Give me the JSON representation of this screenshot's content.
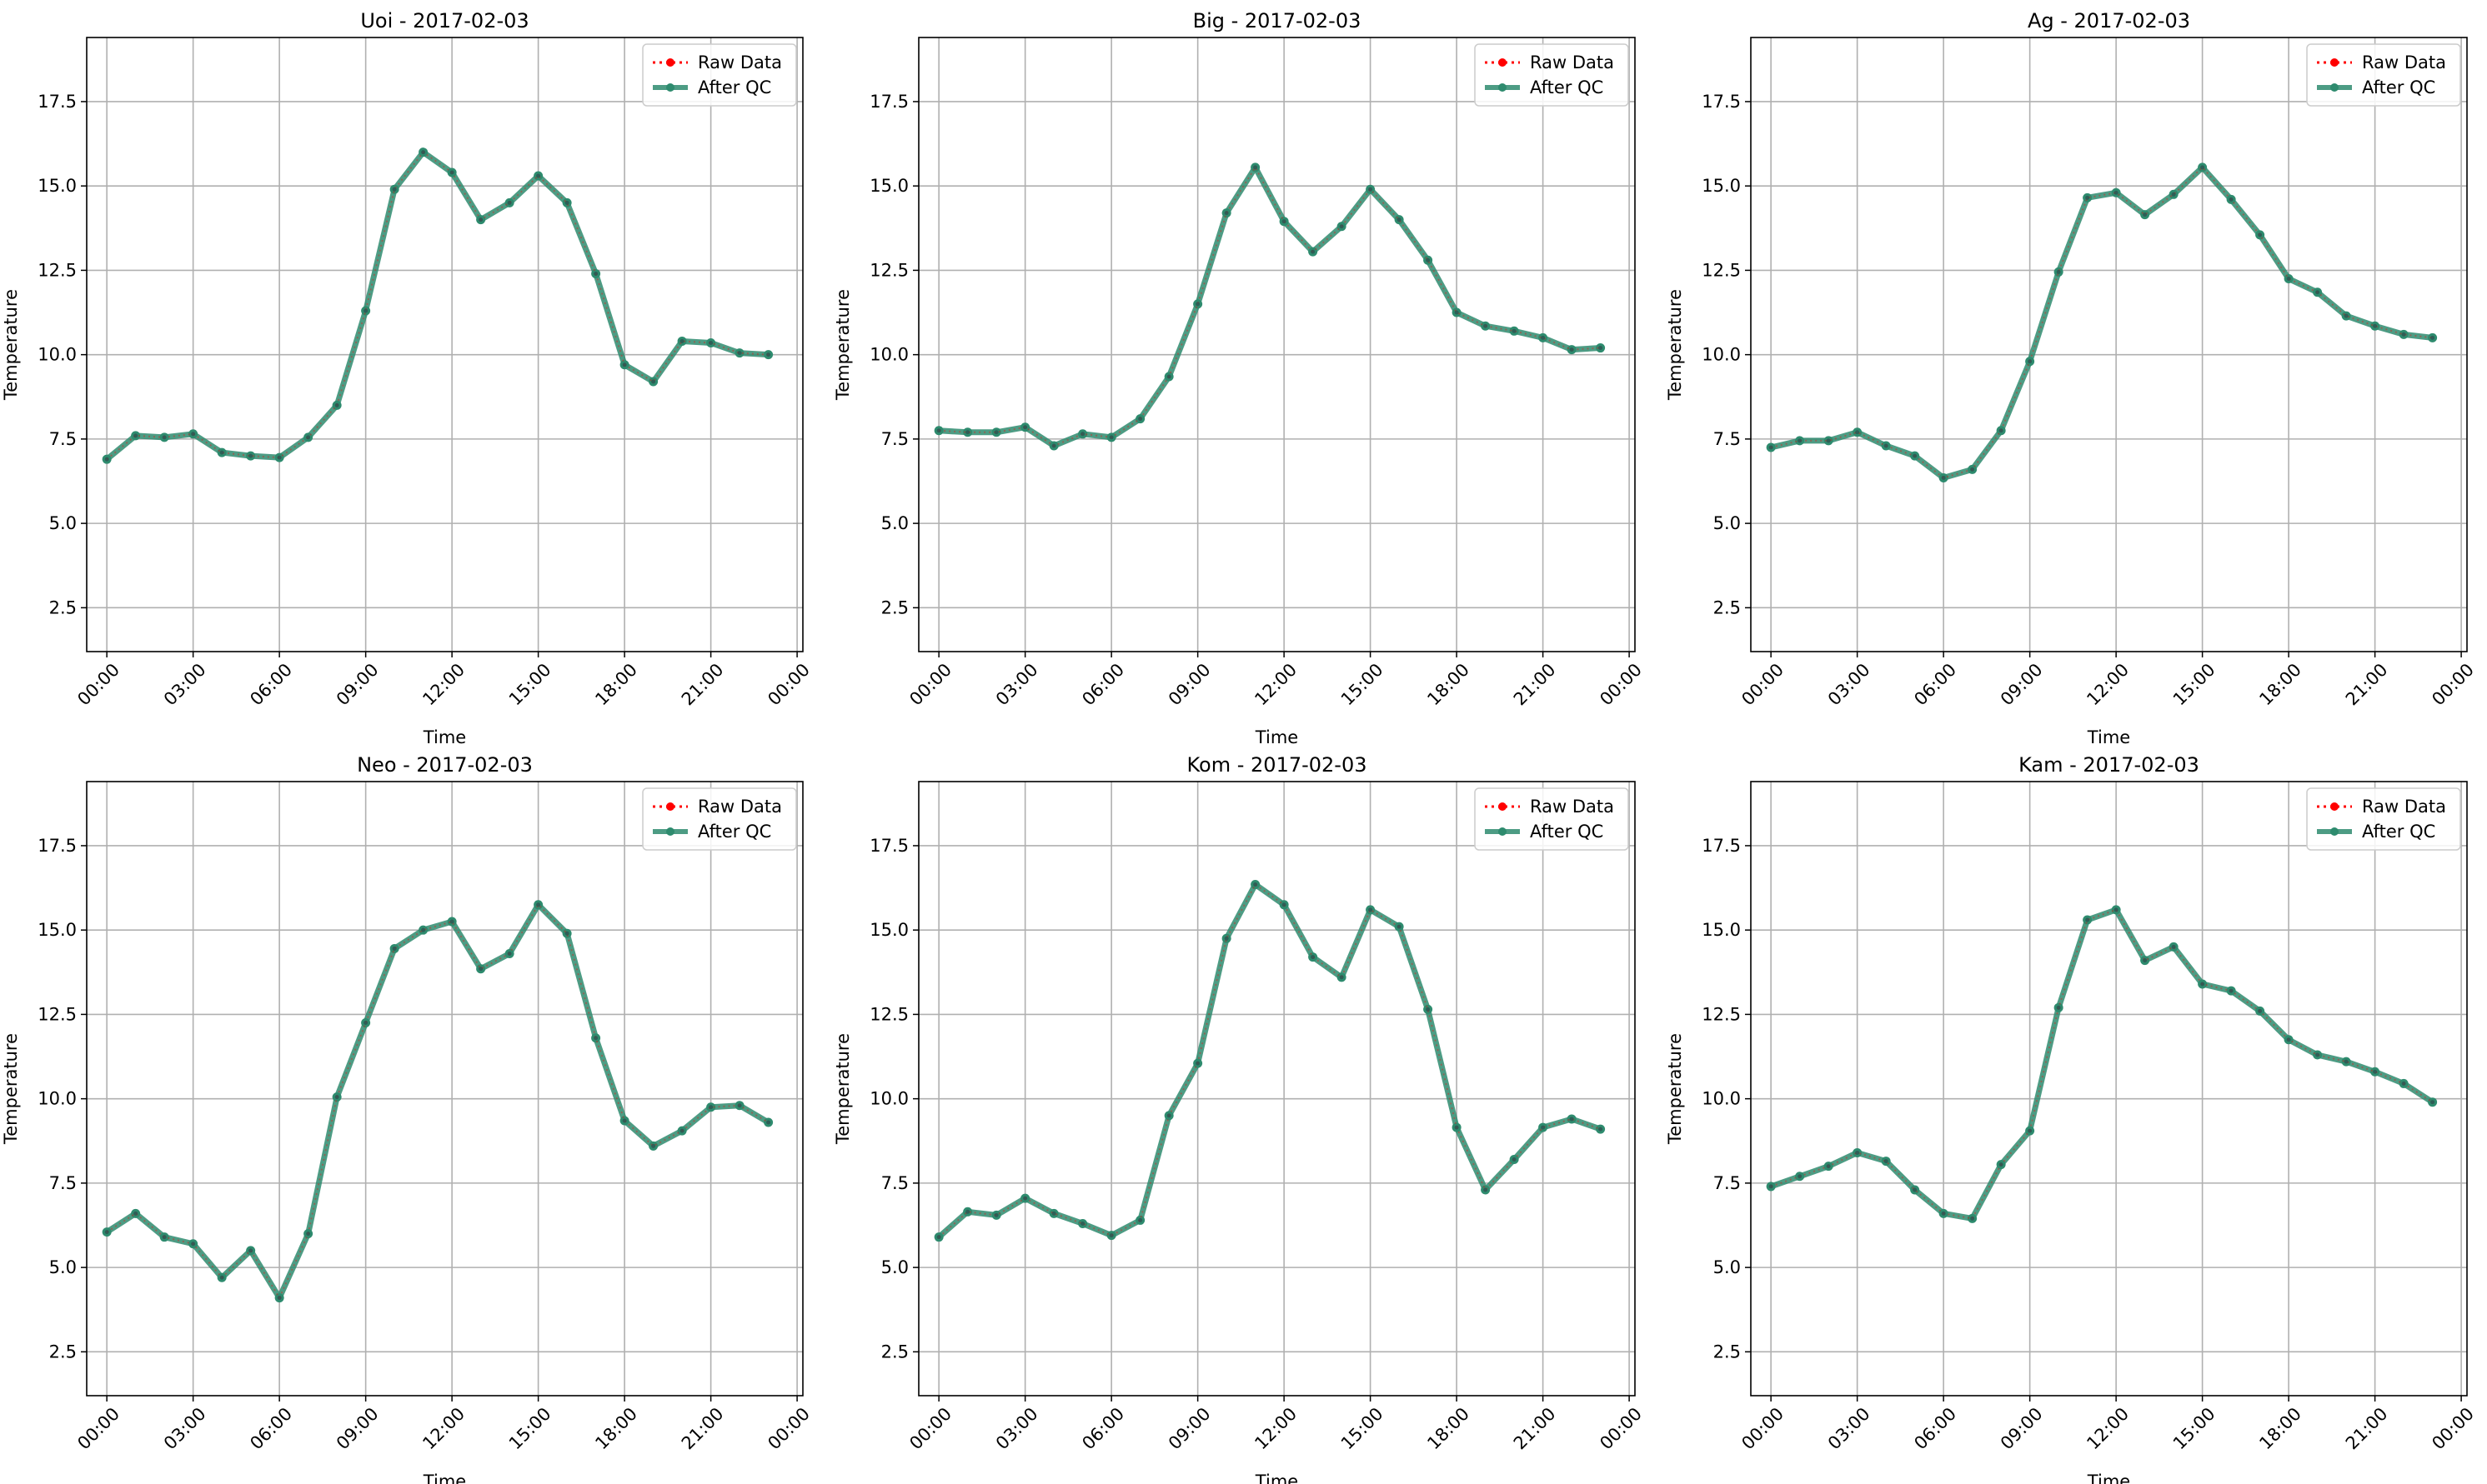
{
  "theme": {
    "raw_color": "#ff0000",
    "qc_color": "#2e8b6e",
    "grid_color": "#b0b0b0",
    "axis_color": "#000000"
  },
  "legend": {
    "raw_label": "Raw Data",
    "qc_label": "After QC"
  },
  "chart_data": [
    {
      "type": "line",
      "title": "Uoi - 2017-02-03",
      "xlabel": "Time",
      "ylabel": "Temperature",
      "ylim": [
        1.2,
        19.4
      ],
      "xlim_hours": [
        -0.7,
        24.2
      ],
      "x_ticks": [
        "00:00",
        "03:00",
        "06:00",
        "09:00",
        "12:00",
        "15:00",
        "18:00",
        "21:00",
        "00:00"
      ],
      "y_ticks": [
        2.5,
        5.0,
        7.5,
        10.0,
        12.5,
        15.0,
        17.5
      ],
      "grid": true,
      "legend_position": "top-right",
      "x": [
        "00:00",
        "01:00",
        "02:00",
        "03:00",
        "04:00",
        "05:00",
        "06:00",
        "07:00",
        "08:00",
        "09:00",
        "10:00",
        "11:00",
        "12:00",
        "13:00",
        "14:00",
        "15:00",
        "16:00",
        "17:00",
        "18:00",
        "19:00",
        "20:00",
        "21:00",
        "22:00",
        "23:00"
      ],
      "series": [
        {
          "name": "Raw Data",
          "values": [
            6.9,
            7.6,
            7.55,
            7.65,
            7.1,
            7.0,
            6.95,
            7.55,
            8.5,
            11.3,
            14.9,
            16.0,
            15.4,
            14.0,
            14.5,
            15.3,
            14.5,
            12.4,
            9.7,
            9.2,
            10.4,
            10.35,
            10.05,
            10.0
          ]
        },
        {
          "name": "After QC",
          "values": [
            6.9,
            7.6,
            7.55,
            7.65,
            7.1,
            7.0,
            6.95,
            7.55,
            8.5,
            11.3,
            14.9,
            16.0,
            15.4,
            14.0,
            14.5,
            15.3,
            14.5,
            12.4,
            9.7,
            9.2,
            10.4,
            10.35,
            10.05,
            10.0
          ]
        }
      ]
    },
    {
      "type": "line",
      "title": "Big - 2017-02-03",
      "xlabel": "Time",
      "ylabel": "Temperature",
      "ylim": [
        1.2,
        19.4
      ],
      "xlim_hours": [
        -0.7,
        24.2
      ],
      "x_ticks": [
        "00:00",
        "03:00",
        "06:00",
        "09:00",
        "12:00",
        "15:00",
        "18:00",
        "21:00",
        "00:00"
      ],
      "y_ticks": [
        2.5,
        5.0,
        7.5,
        10.0,
        12.5,
        15.0,
        17.5
      ],
      "grid": true,
      "legend_position": "top-right",
      "x": [
        "00:00",
        "01:00",
        "02:00",
        "03:00",
        "04:00",
        "05:00",
        "06:00",
        "07:00",
        "08:00",
        "09:00",
        "10:00",
        "11:00",
        "12:00",
        "13:00",
        "14:00",
        "15:00",
        "16:00",
        "17:00",
        "18:00",
        "19:00",
        "20:00",
        "21:00",
        "22:00",
        "23:00"
      ],
      "series": [
        {
          "name": "Raw Data",
          "values": [
            7.75,
            7.7,
            7.7,
            7.85,
            7.3,
            7.65,
            7.55,
            8.1,
            9.35,
            11.5,
            14.2,
            15.55,
            13.95,
            13.05,
            13.8,
            14.9,
            14.0,
            12.8,
            11.25,
            10.85,
            10.7,
            10.5,
            10.15,
            10.2
          ]
        },
        {
          "name": "After QC",
          "values": [
            7.75,
            7.7,
            7.7,
            7.85,
            7.3,
            7.65,
            7.55,
            8.1,
            9.35,
            11.5,
            14.2,
            15.55,
            13.95,
            13.05,
            13.8,
            14.9,
            14.0,
            12.8,
            11.25,
            10.85,
            10.7,
            10.5,
            10.15,
            10.2
          ]
        }
      ]
    },
    {
      "type": "line",
      "title": "Ag - 2017-02-03",
      "xlabel": "Time",
      "ylabel": "Temperature",
      "ylim": [
        1.2,
        19.4
      ],
      "xlim_hours": [
        -0.7,
        24.2
      ],
      "x_ticks": [
        "00:00",
        "03:00",
        "06:00",
        "09:00",
        "12:00",
        "15:00",
        "18:00",
        "21:00",
        "00:00"
      ],
      "y_ticks": [
        2.5,
        5.0,
        7.5,
        10.0,
        12.5,
        15.0,
        17.5
      ],
      "grid": true,
      "legend_position": "top-right",
      "x": [
        "00:00",
        "01:00",
        "02:00",
        "03:00",
        "04:00",
        "05:00",
        "06:00",
        "07:00",
        "08:00",
        "09:00",
        "10:00",
        "11:00",
        "12:00",
        "13:00",
        "14:00",
        "15:00",
        "16:00",
        "17:00",
        "18:00",
        "19:00",
        "20:00",
        "21:00",
        "22:00",
        "23:00"
      ],
      "series": [
        {
          "name": "Raw Data",
          "values": [
            7.25,
            7.45,
            7.45,
            7.7,
            7.3,
            7.0,
            6.35,
            6.6,
            7.75,
            9.8,
            12.45,
            14.65,
            14.8,
            14.15,
            14.75,
            15.55,
            14.6,
            13.55,
            12.25,
            11.85,
            11.15,
            10.85,
            10.6,
            10.5
          ]
        },
        {
          "name": "After QC",
          "values": [
            7.25,
            7.45,
            7.45,
            7.7,
            7.3,
            7.0,
            6.35,
            6.6,
            7.75,
            9.8,
            12.45,
            14.65,
            14.8,
            14.15,
            14.75,
            15.55,
            14.6,
            13.55,
            12.25,
            11.85,
            11.15,
            10.85,
            10.6,
            10.5
          ]
        }
      ]
    },
    {
      "type": "line",
      "title": "Neo - 2017-02-03",
      "xlabel": "Time",
      "ylabel": "Temperature",
      "ylim": [
        1.2,
        19.4
      ],
      "xlim_hours": [
        -0.7,
        24.2
      ],
      "x_ticks": [
        "00:00",
        "03:00",
        "06:00",
        "09:00",
        "12:00",
        "15:00",
        "18:00",
        "21:00",
        "00:00"
      ],
      "y_ticks": [
        2.5,
        5.0,
        7.5,
        10.0,
        12.5,
        15.0,
        17.5
      ],
      "grid": true,
      "legend_position": "top-right",
      "x": [
        "00:00",
        "01:00",
        "02:00",
        "03:00",
        "04:00",
        "05:00",
        "06:00",
        "07:00",
        "08:00",
        "09:00",
        "10:00",
        "11:00",
        "12:00",
        "13:00",
        "14:00",
        "15:00",
        "16:00",
        "17:00",
        "18:00",
        "19:00",
        "20:00",
        "21:00",
        "22:00",
        "23:00"
      ],
      "series": [
        {
          "name": "Raw Data",
          "values": [
            6.05,
            6.6,
            5.9,
            5.7,
            4.7,
            5.5,
            4.1,
            6.0,
            10.05,
            12.25,
            14.45,
            15.0,
            15.25,
            13.85,
            14.3,
            15.75,
            14.9,
            11.8,
            9.35,
            8.6,
            9.05,
            9.75,
            9.8,
            9.3
          ]
        },
        {
          "name": "After QC",
          "values": [
            6.05,
            6.6,
            5.9,
            5.7,
            4.7,
            5.5,
            4.1,
            6.0,
            10.05,
            12.25,
            14.45,
            15.0,
            15.25,
            13.85,
            14.3,
            15.75,
            14.9,
            11.8,
            9.35,
            8.6,
            9.05,
            9.75,
            9.8,
            9.3
          ]
        }
      ]
    },
    {
      "type": "line",
      "title": "Kom - 2017-02-03",
      "xlabel": "Time",
      "ylabel": "Temperature",
      "ylim": [
        1.2,
        19.4
      ],
      "xlim_hours": [
        -0.7,
        24.2
      ],
      "x_ticks": [
        "00:00",
        "03:00",
        "06:00",
        "09:00",
        "12:00",
        "15:00",
        "18:00",
        "21:00",
        "00:00"
      ],
      "y_ticks": [
        2.5,
        5.0,
        7.5,
        10.0,
        12.5,
        15.0,
        17.5
      ],
      "grid": true,
      "legend_position": "top-right",
      "x": [
        "00:00",
        "01:00",
        "02:00",
        "03:00",
        "04:00",
        "05:00",
        "06:00",
        "07:00",
        "08:00",
        "09:00",
        "10:00",
        "11:00",
        "12:00",
        "13:00",
        "14:00",
        "15:00",
        "16:00",
        "17:00",
        "18:00",
        "19:00",
        "20:00",
        "21:00",
        "22:00",
        "23:00"
      ],
      "series": [
        {
          "name": "Raw Data",
          "values": [
            5.9,
            6.65,
            6.55,
            7.05,
            6.6,
            6.3,
            5.95,
            6.4,
            9.5,
            11.05,
            14.75,
            16.35,
            15.75,
            14.2,
            13.6,
            15.6,
            15.1,
            12.65,
            9.15,
            7.3,
            8.2,
            9.15,
            9.4,
            9.1
          ]
        },
        {
          "name": "After QC",
          "values": [
            5.9,
            6.65,
            6.55,
            7.05,
            6.6,
            6.3,
            5.95,
            6.4,
            9.5,
            11.05,
            14.75,
            16.35,
            15.75,
            14.2,
            13.6,
            15.6,
            15.1,
            12.65,
            9.15,
            7.3,
            8.2,
            9.15,
            9.4,
            9.1
          ]
        }
      ]
    },
    {
      "type": "line",
      "title": "Kam - 2017-02-03",
      "xlabel": "Time",
      "ylabel": "Temperature",
      "ylim": [
        1.2,
        19.4
      ],
      "xlim_hours": [
        -0.7,
        24.2
      ],
      "x_ticks": [
        "00:00",
        "03:00",
        "06:00",
        "09:00",
        "12:00",
        "15:00",
        "18:00",
        "21:00",
        "00:00"
      ],
      "y_ticks": [
        2.5,
        5.0,
        7.5,
        10.0,
        12.5,
        15.0,
        17.5
      ],
      "grid": true,
      "legend_position": "top-right",
      "x": [
        "00:00",
        "01:00",
        "02:00",
        "03:00",
        "04:00",
        "05:00",
        "06:00",
        "07:00",
        "08:00",
        "09:00",
        "10:00",
        "11:00",
        "12:00",
        "13:00",
        "14:00",
        "15:00",
        "16:00",
        "17:00",
        "18:00",
        "19:00",
        "20:00",
        "21:00",
        "22:00",
        "23:00"
      ],
      "series": [
        {
          "name": "Raw Data",
          "values": [
            7.4,
            7.7,
            8.0,
            8.4,
            8.15,
            7.3,
            6.6,
            6.45,
            8.05,
            9.05,
            12.7,
            15.3,
            15.6,
            14.1,
            14.5,
            13.4,
            13.2,
            12.6,
            11.75,
            11.3,
            11.1,
            10.8,
            10.45,
            9.9
          ]
        },
        {
          "name": "After QC",
          "values": [
            7.4,
            7.7,
            8.0,
            8.4,
            8.15,
            7.3,
            6.6,
            6.45,
            8.05,
            9.05,
            12.7,
            15.3,
            15.6,
            14.1,
            14.5,
            13.4,
            13.2,
            12.6,
            11.75,
            11.3,
            11.1,
            10.8,
            10.45,
            9.9
          ]
        }
      ]
    }
  ]
}
